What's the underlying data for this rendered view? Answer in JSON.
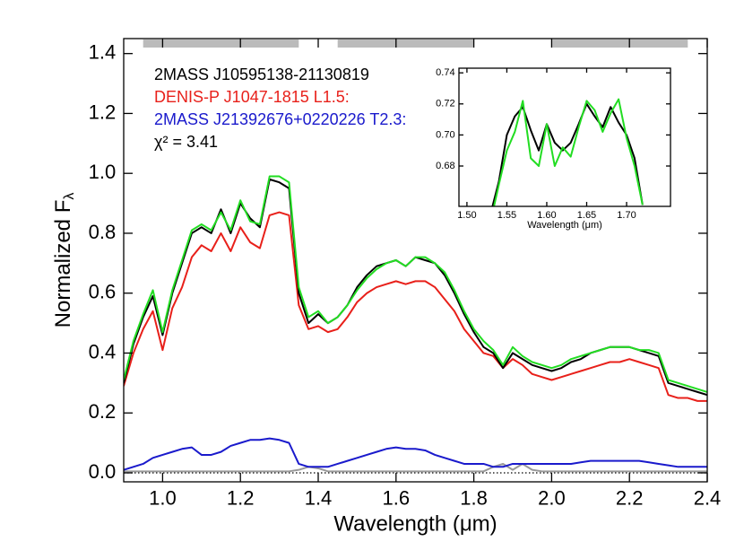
{
  "chart_data": [
    {
      "type": "line",
      "xlabel": "Wavelength (μm)",
      "ylabel": "Normalized F",
      "ylabel_sub": "λ",
      "annotation": "χ² = 3.41",
      "xlim": [
        0.9,
        2.4
      ],
      "ylim": [
        -0.03,
        1.45
      ],
      "xticks": [
        {
          "value": 1.0,
          "label": "1.0"
        },
        1.2,
        1.4,
        1.6,
        1.8,
        {
          "value": 2.0,
          "label": "2.0"
        },
        2.2,
        2.4
      ],
      "yticks": [
        {
          "value": 0.0,
          "label": "0.0"
        },
        0.2,
        0.4,
        0.6,
        0.8,
        {
          "value": 1.0,
          "label": "1.0"
        },
        1.2,
        1.4
      ],
      "hline": 0,
      "bands": [
        [
          0.95,
          1.35
        ],
        [
          1.45,
          1.8
        ],
        [
          2.0,
          2.35
        ]
      ],
      "band_color": "#bbbbbb",
      "x": [
        0.9,
        0.925,
        0.95,
        0.975,
        1.0,
        1.025,
        1.05,
        1.075,
        1.1,
        1.125,
        1.15,
        1.175,
        1.2,
        1.225,
        1.25,
        1.275,
        1.3,
        1.325,
        1.35,
        1.375,
        1.4,
        1.425,
        1.45,
        1.475,
        1.5,
        1.525,
        1.55,
        1.575,
        1.6,
        1.625,
        1.65,
        1.675,
        1.7,
        1.725,
        1.75,
        1.775,
        1.8,
        1.825,
        1.85,
        1.875,
        1.9,
        1.925,
        1.95,
        1.975,
        2.0,
        2.025,
        2.05,
        2.075,
        2.1,
        2.125,
        2.15,
        2.175,
        2.2,
        2.225,
        2.25,
        2.275,
        2.3,
        2.325,
        2.35,
        2.375,
        2.4
      ],
      "series": [
        {
          "color": "#999999",
          "values": [
            0.005,
            0.005,
            0.005,
            0.005,
            0.005,
            0.005,
            0.005,
            0.005,
            0.005,
            0.005,
            0.005,
            0.005,
            0.005,
            0.005,
            0.005,
            0.005,
            0.005,
            0.005,
            0.01,
            0.02,
            0.015,
            0.005,
            0.005,
            0.005,
            0.005,
            0.005,
            0.005,
            0.005,
            0.005,
            0.005,
            0.005,
            0.005,
            0.005,
            0.005,
            0.005,
            0.005,
            0.005,
            0.005,
            0.02,
            0.03,
            0.01,
            0.03,
            0.01,
            0.005,
            0.005,
            0.005,
            0.005,
            0.005,
            0.005,
            0.005,
            0.005,
            0.005,
            0.005,
            0.005,
            0.005,
            0.005,
            0.005,
            0.005,
            0.005,
            0.005,
            0.005
          ]
        },
        {
          "name": "2MASS J21392676+0220226 T2.3:",
          "color": "#1a1acc",
          "values": [
            0.01,
            0.02,
            0.03,
            0.05,
            0.06,
            0.07,
            0.08,
            0.085,
            0.06,
            0.06,
            0.07,
            0.09,
            0.1,
            0.11,
            0.11,
            0.115,
            0.11,
            0.1,
            0.03,
            0.02,
            0.02,
            0.02,
            0.03,
            0.04,
            0.05,
            0.06,
            0.07,
            0.08,
            0.085,
            0.08,
            0.08,
            0.075,
            0.06,
            0.05,
            0.04,
            0.03,
            0.03,
            0.03,
            0.02,
            0.02,
            0.03,
            0.03,
            0.03,
            0.03,
            0.03,
            0.03,
            0.03,
            0.035,
            0.04,
            0.04,
            0.04,
            0.04,
            0.04,
            0.04,
            0.035,
            0.03,
            0.025,
            0.02,
            0.02,
            0.02,
            0.02
          ]
        },
        {
          "name": "DENIS-P J1047-1815 L1.5:",
          "color": "#e8201a",
          "values": [
            0.29,
            0.4,
            0.48,
            0.54,
            0.41,
            0.55,
            0.62,
            0.72,
            0.76,
            0.74,
            0.8,
            0.74,
            0.82,
            0.77,
            0.75,
            0.86,
            0.87,
            0.86,
            0.56,
            0.48,
            0.49,
            0.47,
            0.48,
            0.52,
            0.57,
            0.6,
            0.62,
            0.63,
            0.64,
            0.63,
            0.64,
            0.64,
            0.62,
            0.58,
            0.54,
            0.48,
            0.44,
            0.4,
            0.39,
            0.35,
            0.38,
            0.36,
            0.33,
            0.32,
            0.31,
            0.32,
            0.33,
            0.34,
            0.35,
            0.36,
            0.37,
            0.37,
            0.38,
            0.37,
            0.36,
            0.35,
            0.26,
            0.25,
            0.25,
            0.24,
            0.24
          ]
        },
        {
          "name": "2MASS J10595138-21130819",
          "color": "#000000",
          "values": [
            0.3,
            0.43,
            0.52,
            0.59,
            0.46,
            0.6,
            0.7,
            0.8,
            0.82,
            0.8,
            0.88,
            0.8,
            0.9,
            0.85,
            0.82,
            0.98,
            0.97,
            0.95,
            0.6,
            0.5,
            0.53,
            0.5,
            0.52,
            0.56,
            0.62,
            0.66,
            0.69,
            0.7,
            0.71,
            0.69,
            0.72,
            0.71,
            0.7,
            0.66,
            0.6,
            0.53,
            0.47,
            0.42,
            0.4,
            0.35,
            0.4,
            0.38,
            0.36,
            0.35,
            0.34,
            0.35,
            0.37,
            0.38,
            0.4,
            0.41,
            0.42,
            0.42,
            0.42,
            0.41,
            0.4,
            0.39,
            0.3,
            0.29,
            0.28,
            0.27,
            0.26
          ]
        },
        {
          "color": "#22dd22",
          "values": [
            0.31,
            0.44,
            0.53,
            0.61,
            0.47,
            0.61,
            0.71,
            0.81,
            0.83,
            0.81,
            0.87,
            0.81,
            0.91,
            0.84,
            0.83,
            0.99,
            0.99,
            0.97,
            0.62,
            0.52,
            0.54,
            0.5,
            0.52,
            0.56,
            0.61,
            0.65,
            0.68,
            0.7,
            0.71,
            0.69,
            0.72,
            0.72,
            0.7,
            0.67,
            0.61,
            0.54,
            0.48,
            0.44,
            0.41,
            0.36,
            0.42,
            0.39,
            0.37,
            0.36,
            0.35,
            0.36,
            0.38,
            0.39,
            0.4,
            0.41,
            0.42,
            0.42,
            0.42,
            0.41,
            0.41,
            0.4,
            0.31,
            0.3,
            0.29,
            0.28,
            0.27
          ]
        }
      ],
      "legend": [
        3,
        2,
        1
      ]
    },
    {
      "type": "line",
      "xlabel": "Wavelength (μm)",
      "xlim": [
        1.49,
        1.755
      ],
      "ylim": [
        0.654,
        0.743
      ],
      "xticks": [
        {
          "value": 1.5,
          "label": "1.50"
        },
        1.55,
        {
          "value": 1.6,
          "label": "1.60"
        },
        1.65,
        {
          "value": 1.7,
          "label": "1.70"
        }
      ],
      "yticks": [
        0.68,
        {
          "value": 0.7,
          "label": "0.70"
        },
        0.72,
        0.74
      ],
      "x": [
        1.53,
        1.54,
        1.55,
        1.56,
        1.57,
        1.58,
        1.59,
        1.6,
        1.61,
        1.62,
        1.63,
        1.64,
        1.65,
        1.66,
        1.67,
        1.68,
        1.69,
        1.7,
        1.71,
        1.72
      ],
      "series": [
        {
          "color": "#000000",
          "values": [
            0.65,
            0.67,
            0.7,
            0.712,
            0.718,
            0.703,
            0.69,
            0.707,
            0.695,
            0.69,
            0.695,
            0.707,
            0.72,
            0.712,
            0.705,
            0.718,
            0.708,
            0.7,
            0.685,
            0.655
          ]
        },
        {
          "color": "#22dd22",
          "values": [
            0.645,
            0.668,
            0.69,
            0.702,
            0.722,
            0.685,
            0.68,
            0.707,
            0.68,
            0.692,
            0.686,
            0.705,
            0.722,
            0.716,
            0.702,
            0.714,
            0.723,
            0.698,
            0.68,
            0.655
          ]
        }
      ]
    }
  ]
}
